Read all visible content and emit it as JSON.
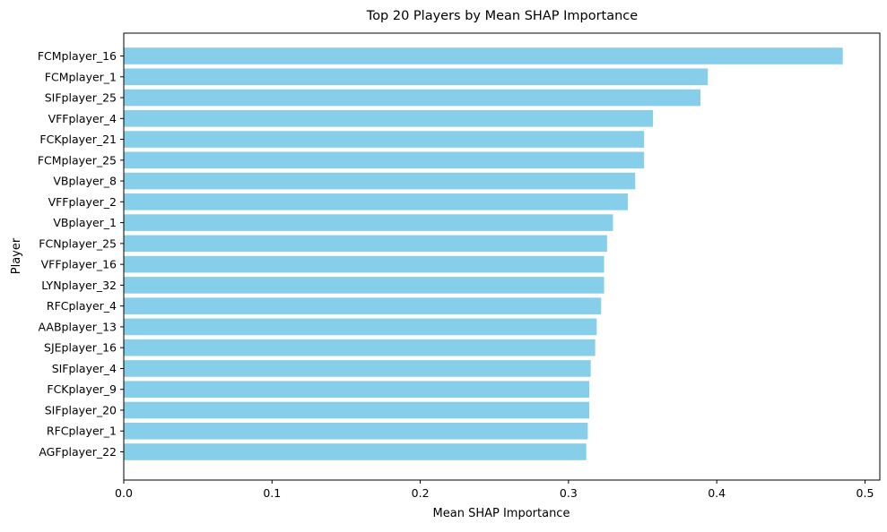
{
  "chart_data": {
    "type": "bar",
    "orientation": "horizontal",
    "title": "Top 20 Players by Mean SHAP Importance",
    "xlabel": "Mean SHAP Importance",
    "ylabel": "Player",
    "xlim": [
      0,
      0.51
    ],
    "xticks": [
      "0.0",
      "0.1",
      "0.2",
      "0.3",
      "0.4",
      "0.5"
    ],
    "bar_color": "#87CEEB",
    "grid": false,
    "legend": "none",
    "categories": [
      "FCMplayer_16",
      "FCMplayer_1",
      "SIFplayer_25",
      "VFFplayer_4",
      "FCKplayer_21",
      "FCMplayer_25",
      "VBplayer_8",
      "VFFplayer_2",
      "VBplayer_1",
      "FCNplayer_25",
      "VFFplayer_16",
      "LYNplayer_32",
      "RFCplayer_4",
      "AABplayer_13",
      "SJEplayer_16",
      "SIFplayer_4",
      "FCKplayer_9",
      "SIFplayer_20",
      "RFCplayer_1",
      "AGFplayer_22"
    ],
    "values": [
      0.485,
      0.394,
      0.389,
      0.357,
      0.351,
      0.351,
      0.345,
      0.34,
      0.33,
      0.326,
      0.324,
      0.324,
      0.322,
      0.319,
      0.318,
      0.315,
      0.314,
      0.314,
      0.313,
      0.312
    ]
  }
}
